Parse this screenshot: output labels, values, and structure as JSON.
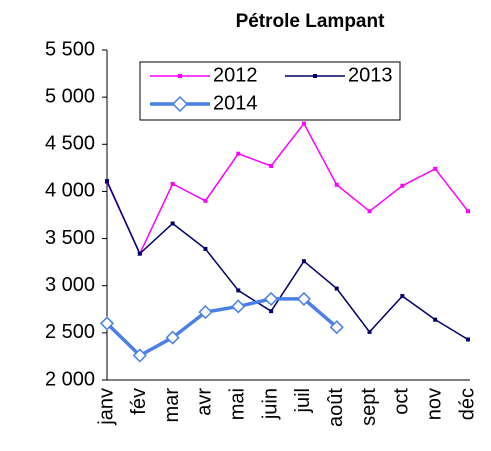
{
  "chart_data": {
    "type": "line",
    "title": "Pétrole Lampant",
    "categories": [
      "janv",
      "fév",
      "mar",
      "avr",
      "mai",
      "juin",
      "juil",
      "août",
      "sept",
      "oct",
      "nov",
      "déc"
    ],
    "series": [
      {
        "name": "2012",
        "color": "#ff00ff",
        "marker": "square",
        "values": [
          4100,
          3340,
          4080,
          3900,
          4400,
          4270,
          4720,
          4070,
          3790,
          4060,
          4240,
          3790
        ]
      },
      {
        "name": "2013",
        "color": "#000066",
        "marker": "square",
        "values": [
          4110,
          3340,
          3660,
          3390,
          2950,
          2730,
          3260,
          2970,
          2510,
          2890,
          2640,
          2430
        ]
      },
      {
        "name": "2014",
        "color": "#4a7fe6",
        "marker": "diamond",
        "values": [
          2600,
          2260,
          2450,
          2720,
          2780,
          2860,
          2860,
          2560,
          null,
          null,
          null,
          null
        ]
      }
    ],
    "ylim": [
      2000,
      5500
    ],
    "yticks": [
      {
        "value": 2000,
        "label": "2 000"
      },
      {
        "value": 2500,
        "label": "2 500"
      },
      {
        "value": 3000,
        "label": "3 000"
      },
      {
        "value": 3500,
        "label": "3 500"
      },
      {
        "value": 4000,
        "label": "4 000"
      },
      {
        "value": 4500,
        "label": "4 500"
      },
      {
        "value": 5000,
        "label": "5 000"
      },
      {
        "value": 5500,
        "label": "5 500"
      }
    ],
    "grid": false
  }
}
